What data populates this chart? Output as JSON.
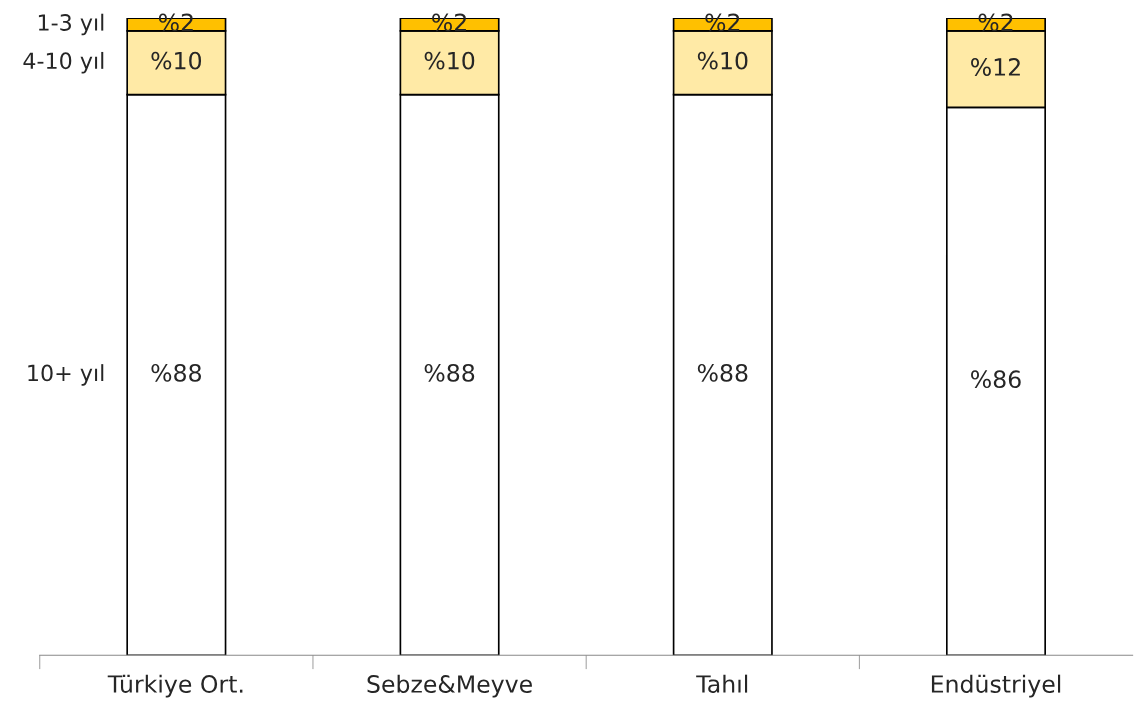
{
  "chart_data": {
    "type": "bar",
    "stacked": true,
    "categories": [
      "Türkiye Ort.",
      "Sebze&Meyve",
      "Tahıl",
      "Endüstriyel"
    ],
    "ylim": [
      0,
      100
    ],
    "tick_labels": "x",
    "series": [
      {
        "name": "10+ yıl",
        "color": "#ffffff",
        "values": [
          88,
          88,
          88,
          86
        ],
        "value_labels": [
          "%88",
          "%88",
          "%88",
          "%86"
        ]
      },
      {
        "name": "4-10 yıl",
        "color": "#ffeaa6",
        "values": [
          10,
          10,
          10,
          12
        ],
        "value_labels": [
          "%10",
          "%10",
          "%10",
          "%12"
        ]
      },
      {
        "name": "1-3 yıl",
        "color": "#ffc000",
        "values": [
          2,
          2,
          2,
          2
        ],
        "value_labels": [
          "%2",
          "%2",
          "%2",
          "%2"
        ]
      }
    ]
  }
}
